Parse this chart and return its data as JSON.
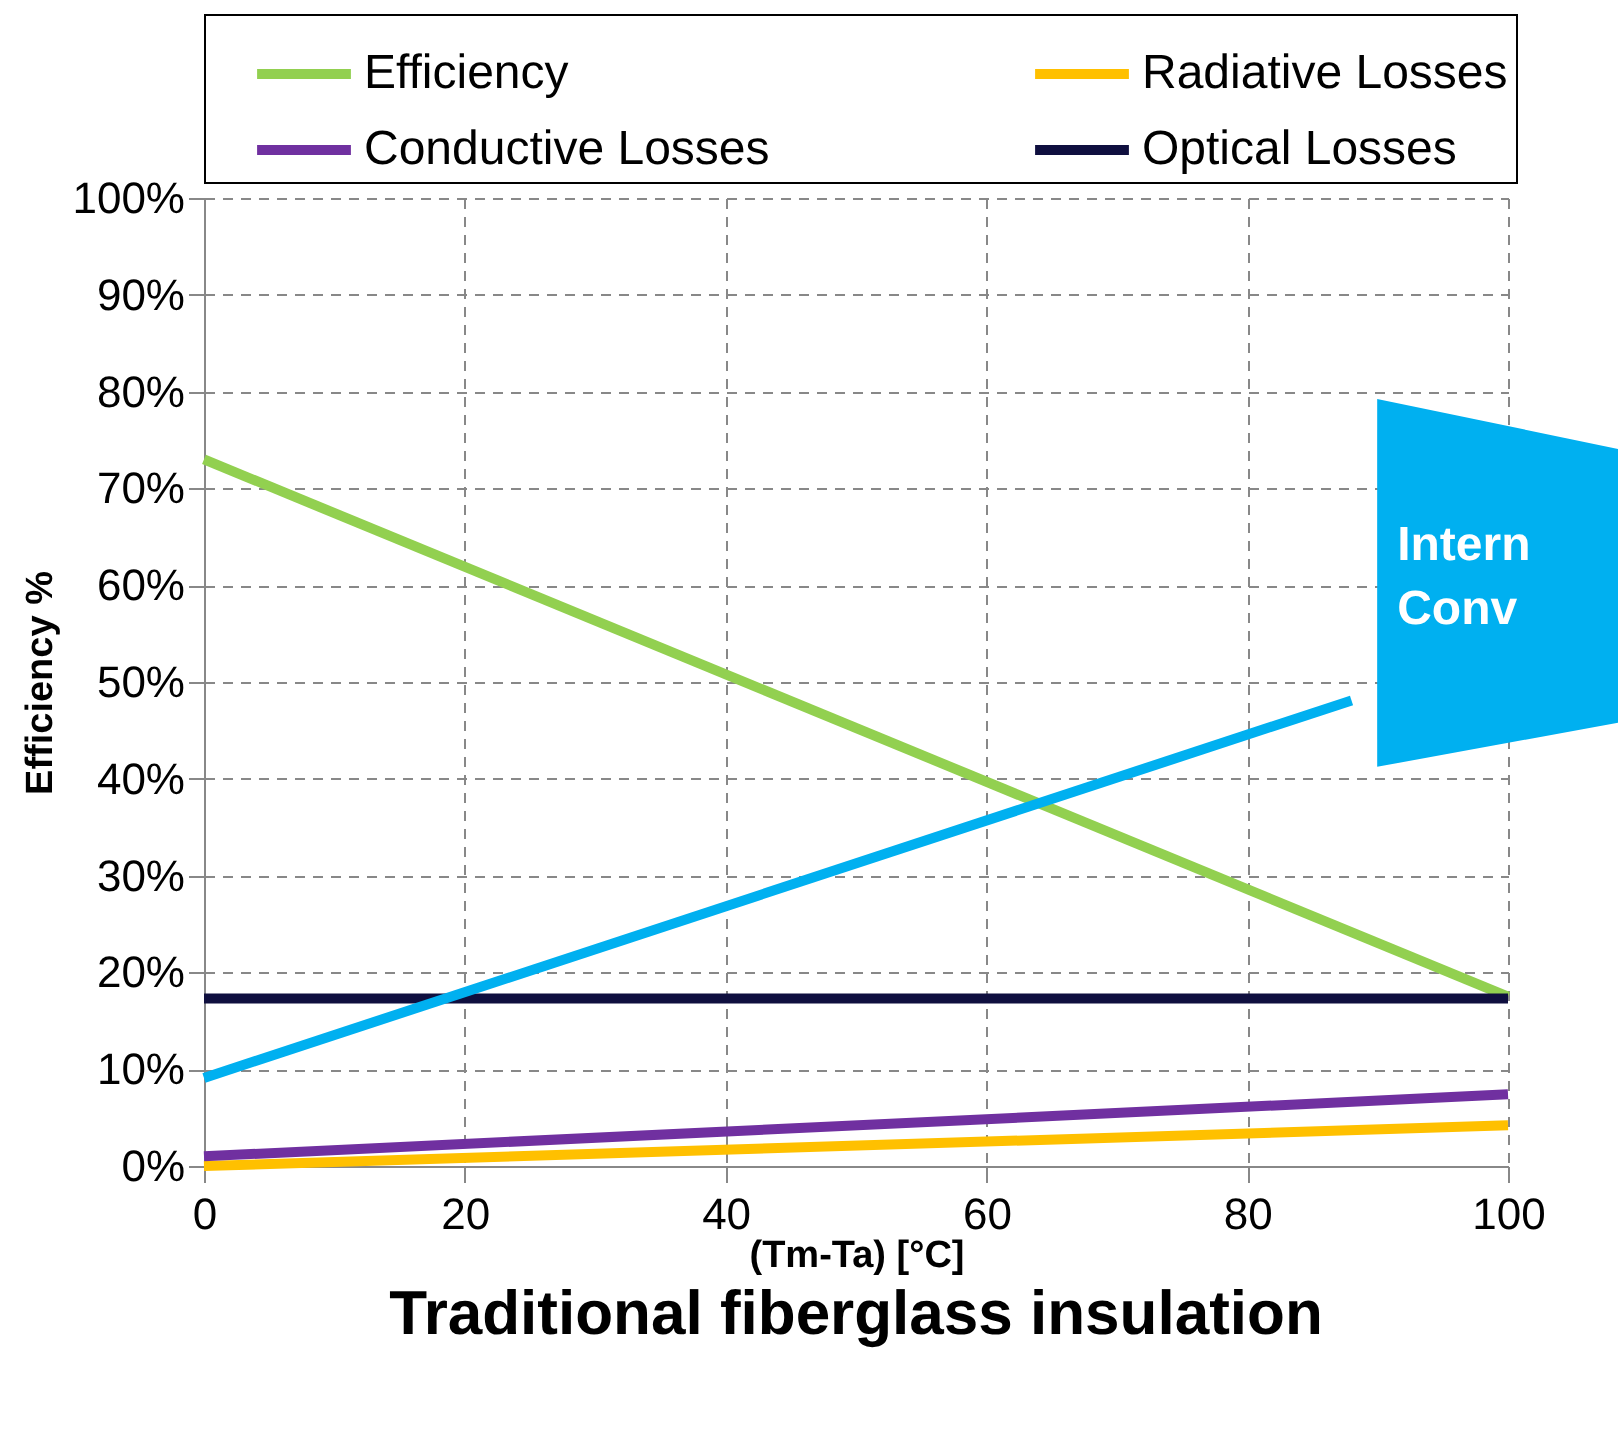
{
  "chart_data": {
    "type": "line",
    "title": "Traditional fiberglass insulation",
    "xlabel": "(Tm-Ta) [°C]",
    "ylabel": "Efficiency %",
    "x": [
      0,
      100
    ],
    "series": [
      {
        "name": "Efficiency",
        "color": "#92d050",
        "values": [
          73,
          17.5
        ]
      },
      {
        "name": "Radiative Losses",
        "color": "#ffc000",
        "values": [
          0,
          4.2
        ]
      },
      {
        "name": "Conductive Losses",
        "color": "#7030a0",
        "values": [
          1,
          7.4
        ]
      },
      {
        "name": "Optical Losses",
        "color": "#0f0f3f",
        "values": [
          17.3,
          17.3
        ]
      },
      {
        "color": "#00b0f0",
        "x": [
          0,
          88
        ],
        "values": [
          9.1,
          48.1
        ]
      }
    ],
    "annotations": [
      "Intern",
      "Conv"
    ],
    "xlim": [
      0,
      100
    ],
    "xticks": [
      0,
      20,
      40,
      60,
      80,
      100
    ],
    "ylim": [
      0,
      100
    ],
    "yticks": [
      {
        "value": 0,
        "label": "0%"
      },
      {
        "value": 10,
        "label": "10%"
      },
      {
        "value": 20,
        "label": "20%"
      },
      {
        "value": 30,
        "label": "30%"
      },
      {
        "value": 40,
        "label": "40%"
      },
      {
        "value": 50,
        "label": "50%"
      },
      {
        "value": 60,
        "label": "60%"
      },
      {
        "value": 70,
        "label": "70%"
      },
      {
        "value": 80,
        "label": "80%"
      },
      {
        "value": 90,
        "label": "90%"
      },
      {
        "value": 100,
        "label": "100%"
      }
    ],
    "grid": true,
    "legend": "top",
    "line_style": "solid",
    "marker": "none"
  }
}
